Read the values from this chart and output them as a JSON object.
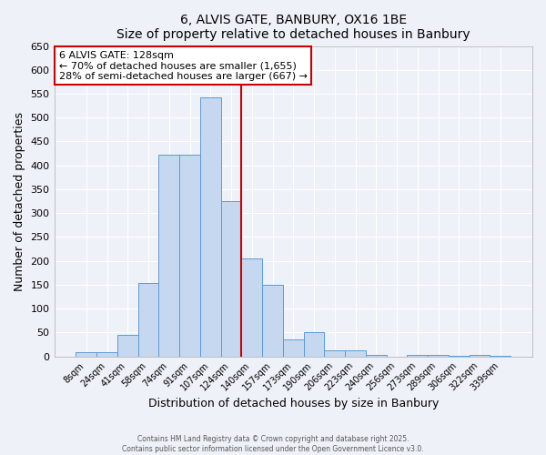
{
  "title": "6, ALVIS GATE, BANBURY, OX16 1BE",
  "subtitle": "Size of property relative to detached houses in Banbury",
  "xlabel": "Distribution of detached houses by size in Banbury",
  "ylabel": "Number of detached properties",
  "bar_labels": [
    "8sqm",
    "24sqm",
    "41sqm",
    "58sqm",
    "74sqm",
    "91sqm",
    "107sqm",
    "124sqm",
    "140sqm",
    "157sqm",
    "173sqm",
    "190sqm",
    "206sqm",
    "223sqm",
    "240sqm",
    "256sqm",
    "273sqm",
    "289sqm",
    "306sqm",
    "322sqm",
    "339sqm"
  ],
  "bar_values": [
    8,
    8,
    45,
    153,
    422,
    422,
    543,
    325,
    205,
    150,
    35,
    50,
    13,
    13,
    3,
    0,
    3,
    3,
    1,
    3,
    1
  ],
  "bar_color": "#c5d8f0",
  "bar_edgecolor": "#5b9bd5",
  "vline_index": 7,
  "vline_color": "#cc0000",
  "ylim": [
    0,
    650
  ],
  "yticks": [
    0,
    50,
    100,
    150,
    200,
    250,
    300,
    350,
    400,
    450,
    500,
    550,
    600,
    650
  ],
  "annotation_title": "6 ALVIS GATE: 128sqm",
  "annotation_line1": "← 70% of detached houses are smaller (1,655)",
  "annotation_line2": "28% of semi-detached houses are larger (667) →",
  "annotation_box_facecolor": "#ffffff",
  "annotation_box_edgecolor": "#cc0000",
  "footer1": "Contains HM Land Registry data © Crown copyright and database right 2025.",
  "footer2": "Contains public sector information licensed under the Open Government Licence v3.0.",
  "bg_color": "#eef2f8",
  "grid_color": "#ffffff",
  "bar_width": 1.0
}
